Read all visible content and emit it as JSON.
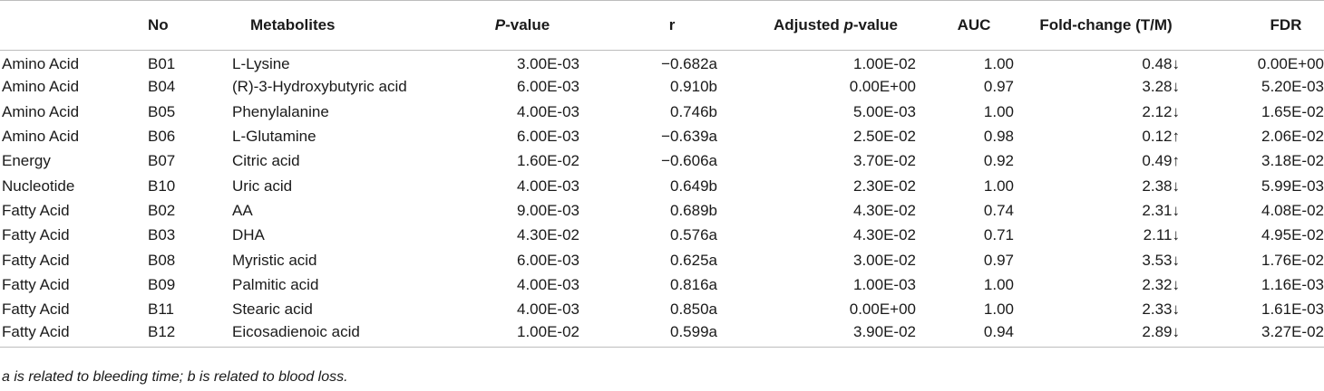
{
  "headers": {
    "no": "No",
    "metabolites": "Metabolites",
    "pvalue_italic": "P",
    "pvalue_rest": "-value",
    "r": "r",
    "adj_pre": "Adjusted ",
    "adj_italic": "p",
    "adj_post": "-value",
    "auc": "AUC",
    "fold": "Fold-change (T/M)",
    "fdr": "FDR"
  },
  "rows": [
    {
      "cls": "Amino Acid",
      "no": "B01",
      "met": "L-Lysine",
      "p": "3.00E-03",
      "r": "−0.682a",
      "adj": "1.00E-02",
      "auc": "1.00",
      "fold": "0.48↓",
      "fdr": "0.00E+00"
    },
    {
      "cls": "Amino Acid",
      "no": "B04",
      "met": "(R)-3-Hydroxybutyric acid",
      "p": "6.00E-03",
      "r": "0.910b",
      "adj": "0.00E+00",
      "auc": "0.97",
      "fold": "3.28↓",
      "fdr": "5.20E-03"
    },
    {
      "cls": "Amino Acid",
      "no": "B05",
      "met": "Phenylalanine",
      "p": "4.00E-03",
      "r": "0.746b",
      "adj": "5.00E-03",
      "auc": "1.00",
      "fold": "2.12↓",
      "fdr": "1.65E-02"
    },
    {
      "cls": "Amino Acid",
      "no": "B06",
      "met": "L-Glutamine",
      "p": "6.00E-03",
      "r": "−0.639a",
      "adj": "2.50E-02",
      "auc": "0.98",
      "fold": "0.12↑",
      "fdr": "2.06E-02"
    },
    {
      "cls": "Energy",
      "no": "B07",
      "met": "Citric acid",
      "p": "1.60E-02",
      "r": "−0.606a",
      "adj": "3.70E-02",
      "auc": "0.92",
      "fold": "0.49↑",
      "fdr": "3.18E-02"
    },
    {
      "cls": "Nucleotide",
      "no": "B10",
      "met": "Uric acid",
      "p": "4.00E-03",
      "r": "0.649b",
      "adj": "2.30E-02",
      "auc": "1.00",
      "fold": "2.38↓",
      "fdr": "5.99E-03"
    },
    {
      "cls": "Fatty Acid",
      "no": "B02",
      "met": "AA",
      "p": "9.00E-03",
      "r": "0.689b",
      "adj": "4.30E-02",
      "auc": "0.74",
      "fold": "2.31↓",
      "fdr": "4.08E-02"
    },
    {
      "cls": "Fatty Acid",
      "no": "B03",
      "met": "DHA",
      "p": "4.30E-02",
      "r": "0.576a",
      "adj": "4.30E-02",
      "auc": "0.71",
      "fold": "2.11↓",
      "fdr": "4.95E-02"
    },
    {
      "cls": "Fatty Acid",
      "no": "B08",
      "met": "Myristic acid",
      "p": "6.00E-03",
      "r": "0.625a",
      "adj": "3.00E-02",
      "auc": "0.97",
      "fold": "3.53↓",
      "fdr": "1.76E-02"
    },
    {
      "cls": "Fatty Acid",
      "no": "B09",
      "met": "Palmitic acid",
      "p": "4.00E-03",
      "r": "0.816a",
      "adj": "1.00E-03",
      "auc": "1.00",
      "fold": "2.32↓",
      "fdr": "1.16E-03"
    },
    {
      "cls": "Fatty Acid",
      "no": "B11",
      "met": "Stearic acid",
      "p": "4.00E-03",
      "r": "0.850a",
      "adj": "0.00E+00",
      "auc": "1.00",
      "fold": "2.33↓",
      "fdr": "1.61E-03"
    },
    {
      "cls": "Fatty Acid",
      "no": "B12",
      "met": "Eicosadienoic acid",
      "p": "1.00E-02",
      "r": "0.599a",
      "adj": "3.90E-02",
      "auc": "0.94",
      "fold": "2.89↓",
      "fdr": "3.27E-02"
    }
  ],
  "footnote": "a is related to bleeding time; b is related to blood loss."
}
